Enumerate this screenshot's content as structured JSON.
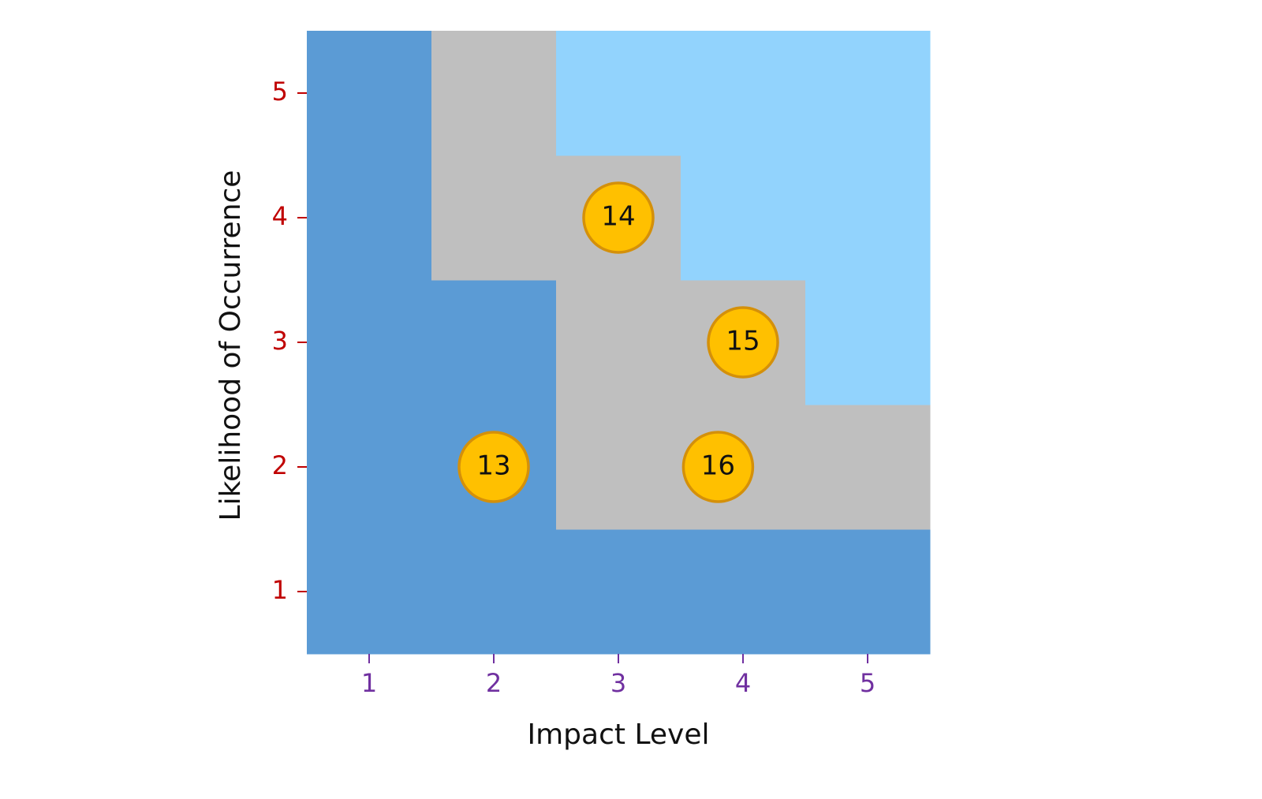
{
  "chart_data": {
    "type": "scatter",
    "x_label": "Impact Level",
    "y_label": "Likelihood of Occurrence",
    "x": [
      2,
      3,
      4,
      3.8
    ],
    "values": [
      2,
      4,
      3,
      2
    ],
    "labels": [
      "13",
      "14",
      "15",
      "16"
    ],
    "xlim": [
      0.5,
      5.5
    ],
    "ylim": [
      0.5,
      5.5
    ],
    "xticks": [
      1,
      2,
      3,
      4,
      5
    ],
    "yticks": [
      1,
      2,
      3,
      4,
      5
    ],
    "cell_colors": [
      [
        "#5b9bd5",
        "#5b9bd5",
        "#5b9bd5",
        "#5b9bd5",
        "#5b9bd5"
      ],
      [
        "#5b9bd5",
        "#5b9bd5",
        "#bfbfbf",
        "#bfbfbf",
        "#bfbfbf"
      ],
      [
        "#5b9bd5",
        "#5b9bd5",
        "#bfbfbf",
        "#bfbfbf",
        "#92d3fd"
      ],
      [
        "#5b9bd5",
        "#bfbfbf",
        "#bfbfbf",
        "#92d3fd",
        "#92d3fd"
      ],
      [
        "#5b9bd5",
        "#bfbfbf",
        "#92d3fd",
        "#92d3fd",
        "#92d3fd"
      ]
    ],
    "marker_color": "#ffc000",
    "marker_edge_color": "#d4900a",
    "xtick_color": "#7030a0",
    "ytick_color": "#c00000"
  }
}
